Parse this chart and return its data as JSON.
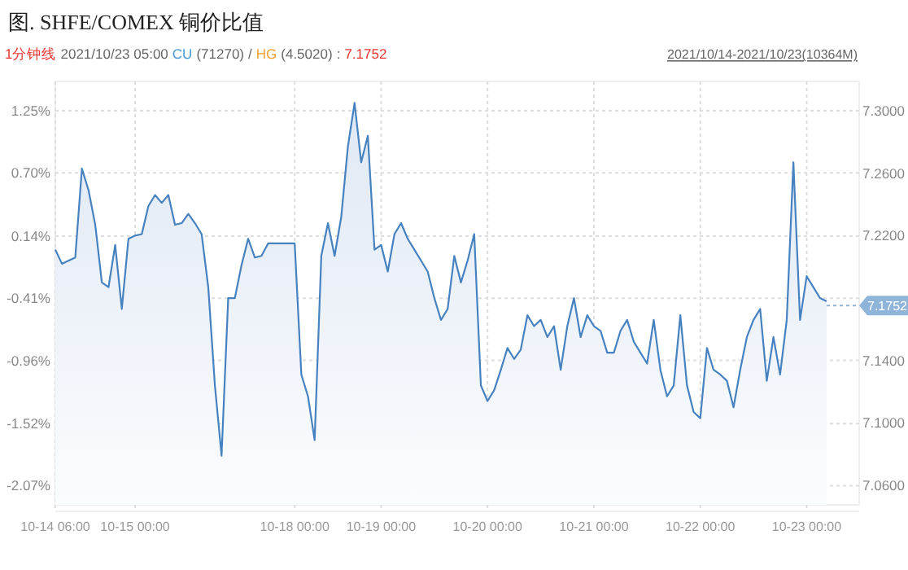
{
  "chart_data": {
    "type": "area",
    "title": "图. SHFE/COMEX 铜价比值",
    "annotations": [
      "1分钟线",
      "2021/10/23 05:00",
      "CU",
      "(71270)",
      "/",
      "HG",
      "(4.5020)",
      ":",
      "7.1752",
      "2021/10/14-2021/10/23(10364M)"
    ],
    "categories": [
      "10-14 06:00",
      null,
      null,
      null,
      null,
      null,
      null,
      null,
      null,
      null,
      null,
      null,
      "10-15 00:00",
      null,
      null,
      null,
      null,
      null,
      null,
      null,
      null,
      null,
      null,
      null,
      null,
      null,
      null,
      null,
      null,
      null,
      null,
      null,
      null,
      null,
      null,
      null,
      "10-18 00:00",
      null,
      null,
      null,
      null,
      null,
      null,
      null,
      null,
      null,
      null,
      null,
      null,
      "10-19 00:00",
      null,
      null,
      null,
      null,
      null,
      null,
      null,
      null,
      null,
      null,
      null,
      null,
      null,
      null,
      null,
      "10-20 00:00",
      null,
      null,
      null,
      null,
      null,
      null,
      null,
      null,
      null,
      null,
      null,
      null,
      null,
      null,
      null,
      "10-21 00:00",
      null,
      null,
      null,
      null,
      null,
      null,
      null,
      null,
      null,
      null,
      null,
      null,
      null,
      null,
      null,
      "10-22 00:00",
      null,
      null,
      null,
      null,
      null,
      null,
      null,
      null,
      null,
      null,
      null,
      null,
      null,
      null,
      null,
      "10-23 00:00",
      null,
      null,
      null
    ],
    "series": [
      {
        "color": "#4682c0",
        "axis": "y2",
        "values": [
          7.211,
          7.202,
          7.204,
          7.206,
          7.263,
          7.249,
          7.227,
          7.19,
          7.187,
          7.214,
          7.173,
          7.218,
          7.22,
          7.221,
          7.239,
          7.246,
          7.241,
          7.246,
          7.227,
          7.228,
          7.234,
          7.228,
          7.221,
          7.187,
          7.124,
          7.079,
          7.18,
          7.18,
          7.201,
          7.218,
          7.206,
          7.207,
          7.215,
          7.215,
          7.215,
          7.215,
          7.215,
          7.131,
          7.117,
          7.089,
          7.207,
          7.228,
          7.207,
          7.232,
          7.277,
          7.305,
          7.267,
          7.284,
          7.211,
          7.214,
          7.197,
          7.221,
          7.228,
          7.218,
          7.211,
          7.204,
          7.197,
          7.18,
          7.166,
          7.173,
          7.207,
          7.19,
          7.204,
          7.221,
          7.124,
          7.114,
          7.121,
          7.134,
          7.148,
          7.141,
          7.147,
          7.169,
          7.162,
          7.166,
          7.155,
          7.162,
          7.134,
          7.162,
          7.18,
          7.155,
          7.169,
          7.162,
          7.159,
          7.145,
          7.145,
          7.159,
          7.166,
          7.152,
          7.145,
          7.138,
          7.166,
          7.134,
          7.117,
          7.124,
          7.169,
          7.124,
          7.107,
          7.103,
          7.148,
          7.134,
          7.131,
          7.127,
          7.11,
          7.134,
          7.155,
          7.166,
          7.173,
          7.127,
          7.155,
          7.131,
          7.166,
          7.267,
          7.166,
          7.194,
          7.187,
          7.18,
          7.178
        ]
      }
    ],
    "ylim": [
      -2.24,
      1.51
    ],
    "yticks": [
      {
        "value": 1.25,
        "label": "1.25%"
      },
      {
        "value": 0.7,
        "label": "0.70%"
      },
      {
        "value": 0.14,
        "label": "0.14%"
      },
      {
        "value": -0.41,
        "label": "-0.41%"
      },
      {
        "value": -0.96,
        "label": "-0.96%"
      },
      {
        "value": -1.52,
        "label": "-1.52%"
      },
      {
        "value": -2.07,
        "label": "-2.07%"
      }
    ],
    "y2lim": [
      7.0475,
      7.3188
    ],
    "y2ticks": [
      {
        "value": 7.3,
        "label": "7.3000"
      },
      {
        "value": 7.26,
        "label": "7.2600"
      },
      {
        "value": 7.22,
        "label": "7.2200"
      },
      {
        "value": 7.14,
        "label": "7.1400"
      },
      {
        "value": 7.1,
        "label": "7.1000"
      },
      {
        "value": 7.06,
        "label": "7.0600"
      }
    ],
    "ref_lines": [
      {
        "axis": "y2",
        "value": 7.1752,
        "label": "7.1752",
        "color": "#8fb4da"
      }
    ],
    "grid": true
  }
}
